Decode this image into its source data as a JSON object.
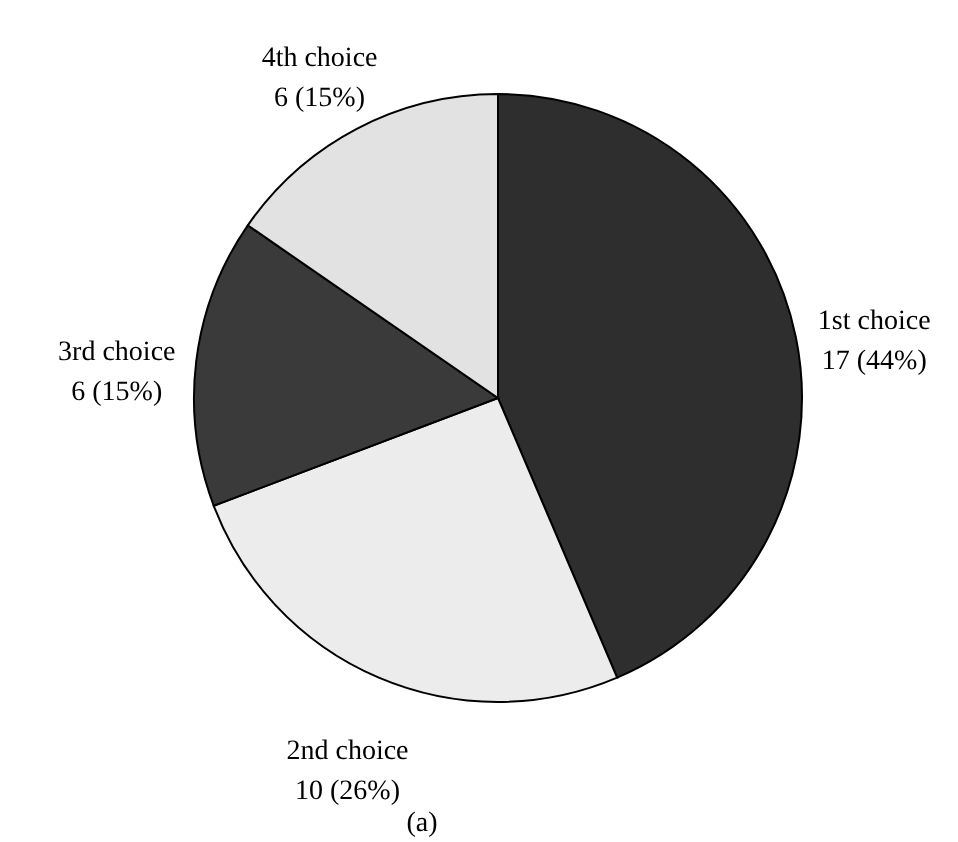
{
  "chart_data": {
    "type": "pie",
    "categories": [
      "1st choice",
      "2nd choice",
      "3rd choice",
      "4th choice"
    ],
    "values": [
      17,
      10,
      6,
      6
    ],
    "value_labels": [
      "17 (44%)",
      "10 (26%)",
      "6 (15%)",
      "6 (15%)"
    ],
    "colors": [
      "#2e2e2e",
      "#ececec",
      "#3a3a3a",
      "#e2e2e2"
    ],
    "annotations": [
      "(a)"
    ]
  }
}
